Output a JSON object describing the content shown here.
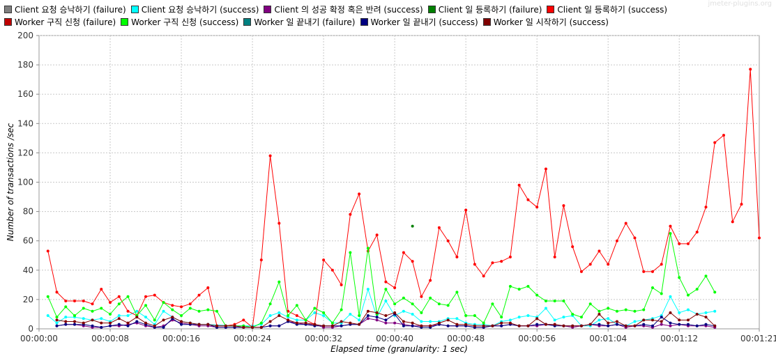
{
  "watermark": "jmeter-plugins.org",
  "chart_data": {
    "type": "line",
    "title": "",
    "xlabel": "Elapsed time (granularity: 1 sec)",
    "ylabel": "Number of transactions /sec",
    "ylim": [
      0,
      200
    ],
    "xlim_seconds": [
      0,
      81
    ],
    "y_ticks": [
      0,
      20,
      40,
      60,
      80,
      100,
      120,
      140,
      160,
      180,
      200
    ],
    "x_ticks": [
      "00:00:00",
      "00:00:08",
      "00:00:16",
      "00:00:24",
      "00:00:32",
      "00:00:40",
      "00:00:48",
      "00:00:56",
      "00:01:04",
      "00:01:12",
      "00:01:21"
    ],
    "grid": true,
    "legend_position": "top",
    "series": [
      {
        "name": "Client 요청 승낙하기 (failure)",
        "color": "#808080",
        "x": [],
        "values": []
      },
      {
        "name": "Client 요청 승낙하기 (success)",
        "color": "#00ffff",
        "x": [
          1,
          2,
          3,
          4,
          5,
          6,
          7,
          8,
          9,
          10,
          11,
          12,
          13,
          14,
          15,
          16,
          17,
          18,
          19,
          22,
          23,
          24,
          25,
          26,
          27,
          28,
          29,
          30,
          31,
          32,
          33,
          34,
          35,
          36,
          37,
          38,
          39,
          40,
          41,
          42,
          43,
          44,
          45,
          46,
          47,
          48,
          49,
          50,
          51,
          52,
          53,
          54,
          55,
          56,
          57,
          58,
          59,
          60,
          61,
          62,
          63,
          64,
          65,
          66,
          67,
          68,
          69,
          70,
          71,
          72,
          73,
          74,
          75,
          76
        ],
        "values": [
          9,
          4,
          8,
          8,
          7,
          6,
          7,
          5,
          9,
          9,
          12,
          8,
          3,
          12,
          8,
          5,
          4,
          3,
          3,
          2,
          2,
          2,
          3,
          9,
          11,
          8,
          6,
          6,
          11,
          9,
          4,
          4,
          10,
          6,
          27,
          8,
          19,
          9,
          12,
          10,
          5,
          5,
          5,
          7,
          7,
          4,
          3,
          3,
          2,
          5,
          6,
          8,
          9,
          8,
          14,
          6,
          8,
          9,
          2,
          2,
          6,
          7,
          3,
          2,
          5,
          6,
          7,
          9,
          22,
          11,
          13,
          10,
          11,
          12
        ]
      },
      {
        "name": "Client 의 성공 확정 혹은 반려 (success)",
        "color": "#800080",
        "x": [
          2,
          3,
          4,
          5,
          6,
          7,
          8,
          9,
          10,
          11,
          12,
          13,
          14,
          15,
          16,
          17,
          18,
          19,
          20,
          21,
          22,
          23,
          24,
          25,
          26,
          27,
          28,
          29,
          30,
          31,
          32,
          33,
          34,
          35,
          36,
          37,
          38,
          39,
          40,
          41,
          42,
          43,
          44,
          45,
          46,
          47,
          48,
          49,
          50,
          51,
          52,
          53,
          54,
          55,
          56,
          57,
          58,
          59,
          60,
          61,
          62,
          63,
          64,
          65,
          66,
          67,
          68,
          69,
          70,
          71,
          72,
          73,
          74,
          75,
          76
        ],
        "values": [
          2,
          3,
          3,
          2,
          1,
          1,
          2,
          2,
          3,
          4,
          2,
          1,
          2,
          6,
          4,
          3,
          2,
          2,
          1,
          1,
          1,
          1,
          1,
          1,
          2,
          2,
          5,
          4,
          3,
          3,
          1,
          1,
          2,
          3,
          3,
          7,
          6,
          4,
          4,
          3,
          2,
          2,
          2,
          3,
          2,
          2,
          2,
          1,
          1,
          2,
          2,
          3,
          2,
          2,
          2,
          3,
          3,
          2,
          1,
          2,
          3,
          2,
          2,
          3,
          1,
          2,
          2,
          1,
          3,
          2,
          3,
          2,
          2,
          2,
          1
        ]
      },
      {
        "name": "Client 일 등록하기 (failure)",
        "color": "#008000",
        "x": [
          42
        ],
        "values": [
          70
        ]
      },
      {
        "name": "Client 일 등록하기 (success)",
        "color": "#ff0000",
        "x": [
          1,
          2,
          3,
          4,
          5,
          6,
          7,
          8,
          9,
          10,
          11,
          12,
          13,
          14,
          15,
          16,
          17,
          18,
          19,
          20,
          21,
          22,
          23,
          24,
          25,
          26,
          27,
          28,
          29,
          30,
          31,
          32,
          33,
          34,
          35,
          36,
          37,
          38,
          39,
          40,
          41,
          42,
          43,
          44,
          45,
          46,
          47,
          48,
          49,
          50,
          51,
          52,
          53,
          54,
          55,
          56,
          57,
          58,
          59,
          60,
          61,
          62,
          63,
          64,
          65,
          66,
          67,
          68,
          69,
          70,
          71,
          72,
          73,
          74,
          75,
          76,
          77,
          78,
          79,
          80,
          81
        ],
        "values": [
          53,
          25,
          19,
          19,
          19,
          17,
          27,
          18,
          22,
          12,
          9,
          22,
          23,
          18,
          16,
          15,
          17,
          23,
          28,
          2,
          2,
          3,
          6,
          1,
          47,
          118,
          72,
          12,
          9,
          6,
          3,
          47,
          40,
          30,
          78,
          92,
          53,
          64,
          32,
          28,
          52,
          46,
          22,
          33,
          69,
          60,
          49,
          81,
          44,
          36,
          45,
          46,
          49,
          98,
          88,
          83,
          109,
          49,
          84,
          56,
          39,
          44,
          53,
          44,
          60,
          72,
          62,
          39,
          39,
          44,
          70,
          58,
          58,
          66,
          83,
          127,
          132,
          73,
          85,
          177,
          62
        ]
      },
      {
        "name": "Worker 구직 신청 (failure)",
        "color": "#c00000",
        "x": [],
        "values": []
      },
      {
        "name": "Worker 구직 신청 (success)",
        "color": "#00ff00",
        "x": [
          1,
          2,
          3,
          4,
          5,
          6,
          7,
          8,
          9,
          10,
          11,
          12,
          13,
          14,
          15,
          16,
          17,
          18,
          19,
          20,
          21,
          22,
          23,
          24,
          25,
          26,
          27,
          28,
          29,
          30,
          31,
          32,
          33,
          34,
          35,
          36,
          37,
          38,
          39,
          40,
          41,
          42,
          43,
          44,
          45,
          46,
          47,
          48,
          49,
          50,
          51,
          52,
          53,
          54,
          55,
          56,
          57,
          58,
          59,
          60,
          61,
          62,
          63,
          64,
          65,
          66,
          67,
          68,
          69,
          70,
          71,
          72,
          73,
          74,
          75,
          76
        ],
        "values": [
          22,
          8,
          15,
          9,
          14,
          12,
          14,
          10,
          17,
          22,
          9,
          16,
          6,
          18,
          13,
          9,
          14,
          12,
          13,
          12,
          2,
          2,
          2,
          1,
          4,
          17,
          32,
          9,
          16,
          6,
          14,
          11,
          4,
          13,
          52,
          9,
          55,
          10,
          27,
          17,
          21,
          17,
          11,
          21,
          17,
          16,
          25,
          9,
          9,
          4,
          17,
          8,
          29,
          27,
          29,
          23,
          19,
          19,
          19,
          10,
          8,
          17,
          12,
          14,
          12,
          13,
          12,
          13,
          28,
          24,
          65,
          35,
          23,
          27,
          36,
          25
        ]
      },
      {
        "name": "Worker 일 끝내기 (failure)",
        "color": "#008080",
        "x": [],
        "values": []
      },
      {
        "name": "Worker 일 끝내기 (success)",
        "color": "#000080",
        "x": [
          2,
          3,
          4,
          5,
          6,
          7,
          8,
          9,
          10,
          11,
          12,
          13,
          14,
          15,
          16,
          17,
          18,
          19,
          20,
          21,
          22,
          23,
          24,
          25,
          26,
          27,
          28,
          29,
          30,
          31,
          32,
          33,
          34,
          35,
          36,
          37,
          38,
          39,
          40,
          41,
          42,
          43,
          44,
          45,
          46,
          47,
          48,
          49,
          50,
          51,
          52,
          53,
          54,
          55,
          56,
          57,
          58,
          59,
          60,
          61,
          62,
          63,
          64,
          65,
          66,
          67,
          68,
          69,
          70,
          71,
          72,
          73,
          74,
          75,
          76
        ],
        "values": [
          2,
          3,
          3,
          3,
          2,
          1,
          2,
          3,
          2,
          5,
          3,
          1,
          1,
          7,
          3,
          3,
          3,
          3,
          1,
          1,
          1,
          1,
          1,
          1,
          2,
          2,
          5,
          3,
          3,
          2,
          2,
          2,
          2,
          3,
          3,
          9,
          8,
          6,
          10,
          2,
          2,
          1,
          1,
          3,
          2,
          2,
          2,
          1,
          1,
          2,
          2,
          3,
          2,
          2,
          3,
          3,
          2,
          2,
          2,
          2,
          3,
          3,
          2,
          3,
          2,
          2,
          3,
          2,
          8,
          4,
          3,
          3,
          2,
          3,
          2
        ]
      },
      {
        "name": "Worker 일 시작하기 (success)",
        "color": "#800000",
        "x": [
          2,
          3,
          4,
          5,
          6,
          7,
          8,
          9,
          10,
          11,
          12,
          13,
          14,
          15,
          16,
          17,
          18,
          19,
          20,
          21,
          22,
          23,
          24,
          25,
          26,
          27,
          28,
          29,
          30,
          31,
          32,
          33,
          34,
          35,
          36,
          37,
          38,
          39,
          40,
          41,
          42,
          43,
          44,
          45,
          46,
          47,
          48,
          49,
          50,
          51,
          52,
          53,
          54,
          55,
          56,
          57,
          58,
          59,
          60,
          61,
          62,
          63,
          64,
          65,
          66,
          67,
          68,
          69,
          70,
          71,
          72,
          73,
          74,
          75,
          76
        ],
        "values": [
          6,
          5,
          5,
          4,
          6,
          4,
          4,
          7,
          4,
          8,
          4,
          2,
          6,
          8,
          5,
          4,
          3,
          3,
          2,
          2,
          2,
          1,
          1,
          1,
          5,
          9,
          6,
          4,
          4,
          3,
          2,
          2,
          5,
          4,
          3,
          12,
          11,
          9,
          11,
          5,
          4,
          2,
          2,
          4,
          6,
          3,
          3,
          2,
          2,
          2,
          4,
          4,
          2,
          2,
          7,
          3,
          3,
          2,
          2,
          2,
          3,
          10,
          4,
          5,
          2,
          2,
          6,
          6,
          5,
          11,
          6,
          6,
          10,
          8,
          2
        ]
      }
    ]
  }
}
